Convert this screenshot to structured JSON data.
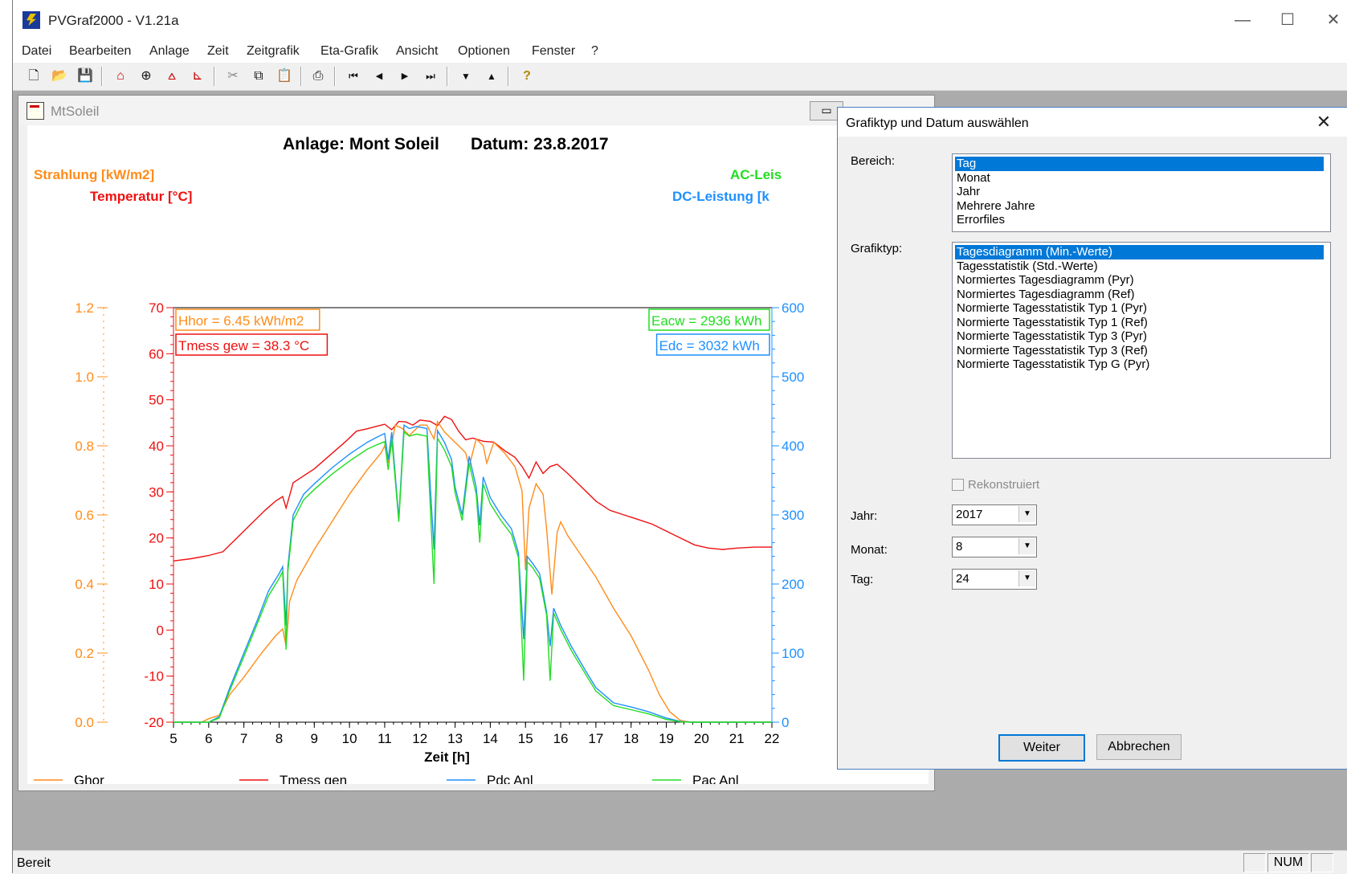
{
  "app": {
    "title": "PVGraf2000 - V1.21a"
  },
  "window_controls": {
    "minimize": "—",
    "maximize": "☐",
    "close": "✕"
  },
  "menu": [
    "Datei",
    "Bearbeiten",
    "Anlage",
    "Zeit",
    "Zeitgrafik",
    "Eta-Grafik",
    "Ansicht",
    "Optionen",
    "Fenster",
    "?"
  ],
  "toolbar": [
    {
      "name": "new-icon",
      "glyph": "🗋"
    },
    {
      "name": "open-icon",
      "glyph": "📂"
    },
    {
      "name": "save-icon",
      "glyph": "💾"
    },
    {
      "name": "house-icon",
      "glyph": "⌂"
    },
    {
      "name": "clock-icon",
      "glyph": "⊕"
    },
    {
      "name": "day-graph-icon",
      "glyph": "⩟"
    },
    {
      "name": "axis-graph-icon",
      "glyph": "⊾"
    },
    {
      "name": "cut-icon",
      "glyph": "✂"
    },
    {
      "name": "copy-icon",
      "glyph": "⧉"
    },
    {
      "name": "paste-icon",
      "glyph": "📋"
    },
    {
      "name": "print-icon",
      "glyph": "⎙"
    },
    {
      "name": "first-icon",
      "glyph": "⏮"
    },
    {
      "name": "prev-icon",
      "glyph": "◀"
    },
    {
      "name": "next-icon",
      "glyph": "▶"
    },
    {
      "name": "last-icon",
      "glyph": "⏭"
    },
    {
      "name": "down-icon",
      "glyph": "▼"
    },
    {
      "name": "up-icon",
      "glyph": "▲"
    },
    {
      "name": "help-icon",
      "glyph": "?"
    }
  ],
  "child_window": {
    "title": "MtSoleil",
    "min_glyph": "▭"
  },
  "status": {
    "text": "Bereit",
    "num": "NUM"
  },
  "dialog": {
    "title": "Grafiktyp und Datum auswählen",
    "close_glyph": "✕",
    "bereich_label": "Bereich:",
    "bereich_items": [
      "Tag",
      "Monat",
      "Jahr",
      "Mehrere Jahre",
      "Errorfiles"
    ],
    "bereich_selected": 0,
    "grafiktyp_label": "Grafiktyp:",
    "grafiktyp_items": [
      "Tagesdiagramm  (Min.-Werte)",
      "Tagesstatistik (Std.-Werte)",
      "Normiertes Tagesdiagramm (Pyr)",
      "Normiertes Tagesdiagramm (Ref)",
      "Normierte Tagesstatistik Typ 1 (Pyr)",
      "Normierte Tagesstatistik Typ 1 (Ref)",
      "Normierte Tagesstatistik Typ 3 (Pyr)",
      "Normierte Tagesstatistik Typ 3 (Ref)",
      "Normierte Tagesstatistik Typ G (Pyr)"
    ],
    "grafiktyp_selected": 0,
    "rekonstruiert_label": "Rekonstruiert",
    "jahr_label": "Jahr:",
    "jahr_value": "2017",
    "monat_label": "Monat:",
    "monat_value": "8",
    "tag_label": "Tag:",
    "tag_value": "24",
    "weiter": "Weiter",
    "abbrechen": "Abbrechen"
  },
  "chart_data": {
    "type": "line",
    "title": "Anlage: Mont Soleil",
    "date_label": "Datum: 23.8.2017",
    "xlabel": "Zeit [h]",
    "xlim": [
      5,
      22
    ],
    "x_ticks": [
      "5",
      "6",
      "7",
      "8",
      "9",
      "10",
      "11",
      "12",
      "13",
      "14",
      "15",
      "16",
      "17",
      "18",
      "19",
      "20",
      "21",
      "22"
    ],
    "axes": {
      "strahlung": {
        "label": "Strahlung [kW/m2]",
        "range": [
          0.0,
          1.2
        ],
        "ticks": [
          "0.0",
          "0.2",
          "0.4",
          "0.6",
          "0.8",
          "1.0",
          "1.2"
        ],
        "color": "#ff8c1a"
      },
      "temperatur": {
        "label": "Temperatur [°C]",
        "range": [
          -20,
          70
        ],
        "ticks": [
          "-20",
          "-10",
          "0",
          "10",
          "20",
          "30",
          "40",
          "50",
          "60",
          "70"
        ],
        "color": "#ee1111"
      },
      "leistung": {
        "label_ac": "AC-Leis",
        "label_dc": "DC-Leistung [k",
        "range": [
          0,
          600
        ],
        "ticks": [
          "0",
          "100",
          "200",
          "300",
          "400",
          "500",
          "600"
        ],
        "color": "#1e90ff",
        "ac_color": "#22dd22"
      }
    },
    "annotations": [
      {
        "text": "Hhor = 6.45 kWh/m2",
        "color": "#ff8c1a"
      },
      {
        "text": "Tmess gew = 38.3 °C",
        "color": "#ee1111"
      },
      {
        "text": "Eacw = 2936 kWh",
        "color": "#22dd22"
      },
      {
        "text": "Edc = 3032 kWh",
        "color": "#1e90ff"
      }
    ],
    "legend": [
      {
        "name": "Ghor",
        "color": "#ff8c1a"
      },
      {
        "name": "Tmess gen",
        "color": "#ee1111"
      },
      {
        "name": "Pdc Anl",
        "color": "#1e90ff"
      },
      {
        "name": "Pac Anl",
        "color": "#22dd22"
      }
    ],
    "series": [
      {
        "name": "Ghor",
        "axis": "strahlung",
        "points": [
          [
            5,
            0
          ],
          [
            5.8,
            0
          ],
          [
            6.0,
            0.01
          ],
          [
            6.3,
            0.02
          ],
          [
            6.6,
            0.08
          ],
          [
            7.0,
            0.13
          ],
          [
            7.5,
            0.2
          ],
          [
            7.9,
            0.25
          ],
          [
            8.1,
            0.27
          ],
          [
            8.2,
            0.22
          ],
          [
            8.3,
            0.35
          ],
          [
            8.5,
            0.41
          ],
          [
            9.0,
            0.5
          ],
          [
            9.5,
            0.58
          ],
          [
            10.0,
            0.66
          ],
          [
            10.5,
            0.73
          ],
          [
            10.9,
            0.78
          ],
          [
            11.0,
            0.8
          ],
          [
            11.1,
            0.75
          ],
          [
            11.3,
            0.86
          ],
          [
            11.5,
            0.85
          ],
          [
            11.7,
            0.83
          ],
          [
            12.0,
            0.86
          ],
          [
            12.2,
            0.86
          ],
          [
            12.4,
            0.82
          ],
          [
            12.5,
            0.87
          ],
          [
            12.7,
            0.84
          ],
          [
            12.9,
            0.82
          ],
          [
            13.1,
            0.8
          ],
          [
            13.3,
            0.78
          ],
          [
            13.4,
            0.74
          ],
          [
            13.6,
            0.82
          ],
          [
            13.8,
            0.8
          ],
          [
            13.9,
            0.75
          ],
          [
            14.1,
            0.81
          ],
          [
            14.4,
            0.78
          ],
          [
            14.7,
            0.74
          ],
          [
            14.9,
            0.67
          ],
          [
            15.0,
            0.44
          ],
          [
            15.1,
            0.62
          ],
          [
            15.3,
            0.69
          ],
          [
            15.5,
            0.66
          ],
          [
            15.6,
            0.56
          ],
          [
            15.75,
            0.37
          ],
          [
            15.9,
            0.55
          ],
          [
            16.0,
            0.58
          ],
          [
            16.2,
            0.54
          ],
          [
            16.6,
            0.48
          ],
          [
            17.0,
            0.42
          ],
          [
            17.5,
            0.33
          ],
          [
            18.0,
            0.25
          ],
          [
            18.5,
            0.15
          ],
          [
            18.8,
            0.08
          ],
          [
            19.1,
            0.03
          ],
          [
            19.4,
            0.005
          ],
          [
            19.7,
            0
          ],
          [
            22,
            0
          ]
        ]
      },
      {
        "name": "Tmess gen",
        "axis": "temperatur",
        "points": [
          [
            5,
            15
          ],
          [
            5.5,
            15.5
          ],
          [
            6.0,
            16.2
          ],
          [
            6.4,
            17
          ],
          [
            6.8,
            20
          ],
          [
            7.2,
            23
          ],
          [
            7.6,
            26
          ],
          [
            7.9,
            28
          ],
          [
            8.1,
            29
          ],
          [
            8.2,
            26.5
          ],
          [
            8.4,
            32
          ],
          [
            8.7,
            33.5
          ],
          [
            9.0,
            35
          ],
          [
            9.3,
            37
          ],
          [
            9.6,
            39
          ],
          [
            9.9,
            41
          ],
          [
            10.2,
            43.2
          ],
          [
            10.5,
            43.7
          ],
          [
            10.8,
            44.3
          ],
          [
            11.0,
            44.7
          ],
          [
            11.2,
            43.5
          ],
          [
            11.4,
            45.3
          ],
          [
            11.6,
            45.2
          ],
          [
            11.8,
            44.5
          ],
          [
            12.0,
            45.6
          ],
          [
            12.3,
            45.3
          ],
          [
            12.5,
            44.4
          ],
          [
            12.7,
            46.4
          ],
          [
            12.9,
            45.7
          ],
          [
            13.1,
            43.2
          ],
          [
            13.3,
            41.3
          ],
          [
            13.5,
            41.7
          ],
          [
            13.8,
            41
          ],
          [
            14.1,
            40.8
          ],
          [
            14.4,
            39
          ],
          [
            14.7,
            37.5
          ],
          [
            14.9,
            35.5
          ],
          [
            15.1,
            33
          ],
          [
            15.3,
            36.5
          ],
          [
            15.5,
            34
          ],
          [
            15.7,
            35.5
          ],
          [
            15.9,
            36
          ],
          [
            16.2,
            34
          ],
          [
            16.6,
            31
          ],
          [
            17.0,
            28
          ],
          [
            17.4,
            26
          ],
          [
            17.8,
            25
          ],
          [
            18.2,
            24
          ],
          [
            18.6,
            23
          ],
          [
            19.0,
            21.5
          ],
          [
            19.4,
            20
          ],
          [
            19.8,
            18.5
          ],
          [
            20.2,
            17.8
          ],
          [
            20.6,
            17.5
          ],
          [
            21.0,
            17.8
          ],
          [
            21.5,
            18
          ],
          [
            22,
            18
          ]
        ]
      },
      {
        "name": "Pdc Anl",
        "axis": "leistung",
        "points": [
          [
            5,
            0
          ],
          [
            6.0,
            0
          ],
          [
            6.3,
            8
          ],
          [
            6.6,
            50
          ],
          [
            7.0,
            100
          ],
          [
            7.4,
            150
          ],
          [
            7.7,
            190
          ],
          [
            8.0,
            215
          ],
          [
            8.1,
            225
          ],
          [
            8.2,
            140
          ],
          [
            8.25,
            225
          ],
          [
            8.4,
            300
          ],
          [
            8.7,
            330
          ],
          [
            9.0,
            345
          ],
          [
            9.5,
            368
          ],
          [
            10.0,
            388
          ],
          [
            10.5,
            405
          ],
          [
            10.8,
            413
          ],
          [
            11.0,
            418
          ],
          [
            11.1,
            380
          ],
          [
            11.2,
            420
          ],
          [
            11.4,
            295
          ],
          [
            11.55,
            430
          ],
          [
            11.7,
            425
          ],
          [
            11.9,
            428
          ],
          [
            12.2,
            425
          ],
          [
            12.4,
            250
          ],
          [
            12.5,
            422
          ],
          [
            12.7,
            405
          ],
          [
            12.9,
            380
          ],
          [
            13.0,
            340
          ],
          [
            13.2,
            300
          ],
          [
            13.4,
            385
          ],
          [
            13.6,
            340
          ],
          [
            13.7,
            285
          ],
          [
            13.8,
            355
          ],
          [
            14.0,
            325
          ],
          [
            14.3,
            300
          ],
          [
            14.6,
            280
          ],
          [
            14.8,
            245
          ],
          [
            14.95,
            120
          ],
          [
            15.05,
            240
          ],
          [
            15.2,
            230
          ],
          [
            15.4,
            215
          ],
          [
            15.6,
            160
          ],
          [
            15.7,
            110
          ],
          [
            15.8,
            165
          ],
          [
            16.0,
            140
          ],
          [
            16.3,
            110
          ],
          [
            16.7,
            75
          ],
          [
            17.0,
            50
          ],
          [
            17.5,
            28
          ],
          [
            18.0,
            22
          ],
          [
            18.5,
            15
          ],
          [
            19.0,
            6
          ],
          [
            19.4,
            1
          ],
          [
            19.7,
            0
          ],
          [
            22,
            0
          ]
        ]
      },
      {
        "name": "Pac Anl",
        "axis": "leistung",
        "points": [
          [
            5,
            0
          ],
          [
            6.0,
            0
          ],
          [
            6.3,
            6
          ],
          [
            6.6,
            46
          ],
          [
            7.0,
            95
          ],
          [
            7.4,
            145
          ],
          [
            7.7,
            183
          ],
          [
            8.0,
            208
          ],
          [
            8.1,
            218
          ],
          [
            8.2,
            105
          ],
          [
            8.25,
            218
          ],
          [
            8.4,
            292
          ],
          [
            8.7,
            322
          ],
          [
            9.0,
            337
          ],
          [
            9.5,
            359
          ],
          [
            10.0,
            378
          ],
          [
            10.5,
            395
          ],
          [
            10.8,
            402
          ],
          [
            11.0,
            406
          ],
          [
            11.1,
            365
          ],
          [
            11.2,
            410
          ],
          [
            11.4,
            290
          ],
          [
            11.55,
            420
          ],
          [
            11.7,
            414
          ],
          [
            11.9,
            417
          ],
          [
            12.2,
            414
          ],
          [
            12.4,
            200
          ],
          [
            12.5,
            411
          ],
          [
            12.7,
            394
          ],
          [
            12.9,
            370
          ],
          [
            13.0,
            332
          ],
          [
            13.2,
            292
          ],
          [
            13.4,
            375
          ],
          [
            13.6,
            330
          ],
          [
            13.7,
            260
          ],
          [
            13.8,
            345
          ],
          [
            14.0,
            316
          ],
          [
            14.3,
            292
          ],
          [
            14.6,
            272
          ],
          [
            14.8,
            238
          ],
          [
            14.95,
            60
          ],
          [
            15.05,
            232
          ],
          [
            15.2,
            224
          ],
          [
            15.4,
            208
          ],
          [
            15.6,
            155
          ],
          [
            15.7,
            60
          ],
          [
            15.8,
            158
          ],
          [
            16.0,
            134
          ],
          [
            16.3,
            104
          ],
          [
            16.7,
            70
          ],
          [
            17.0,
            45
          ],
          [
            17.5,
            24
          ],
          [
            18.0,
            18
          ],
          [
            18.5,
            12
          ],
          [
            19.0,
            4
          ],
          [
            19.4,
            0.5
          ],
          [
            19.7,
            0
          ],
          [
            22,
            0
          ]
        ]
      }
    ]
  }
}
